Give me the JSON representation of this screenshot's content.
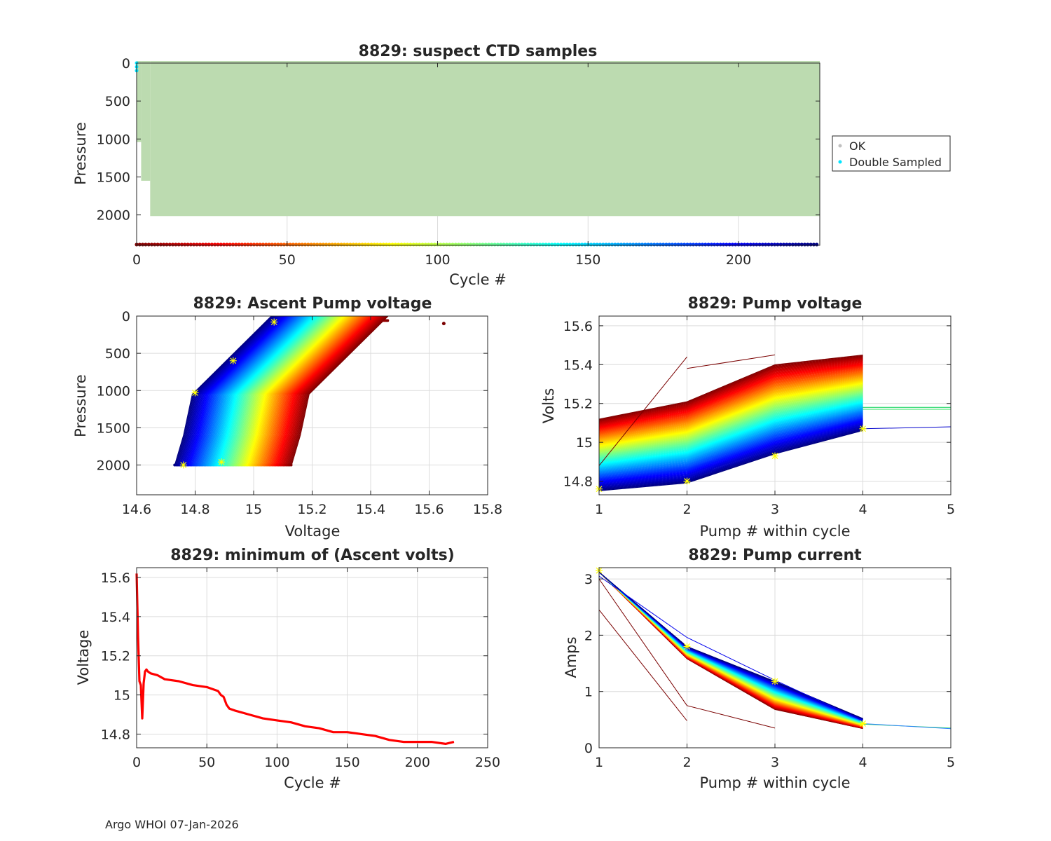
{
  "footer": "Argo WHOI 07-Jan-2026",
  "colors": {
    "ok": "#bcdbb0",
    "double": "#00e5ff",
    "grid": "#dcdcdc",
    "axis": "#262626",
    "min_line": "#ff0000",
    "marker": "#ffff00"
  },
  "chart_data": [
    {
      "id": "ctd",
      "type": "scatter",
      "title": "8829: suspect CTD samples",
      "xlabel": "Cycle #",
      "ylabel": "Pressure",
      "xlim": [
        0,
        227
      ],
      "ylim": [
        0,
        2400
      ],
      "y_reversed": true,
      "xticks": [
        0,
        50,
        100,
        150,
        200
      ],
      "yticks": [
        0,
        500,
        1000,
        1500,
        2000
      ],
      "grid": "x",
      "legend": {
        "placement": "outside-right",
        "entries": [
          {
            "label": "OK",
            "color": "#c0c0c0"
          },
          {
            "label": "Double Sampled",
            "color": "#00e5ff"
          }
        ]
      },
      "ok_profile_max_pressure": [
        {
          "cycle_from": 0,
          "cycle_to": 1.5,
          "pressure": 1040
        },
        {
          "cycle_from": 1.5,
          "cycle_to": 4.5,
          "pressure": 1550
        },
        {
          "cycle_from": 4.5,
          "cycle_to": 227,
          "pressure": 2015
        }
      ],
      "double_sampled": [
        {
          "cycle": 0,
          "pressure": 0
        },
        {
          "cycle": 0,
          "pressure": 50
        },
        {
          "cycle": 0,
          "pressure": 100
        }
      ],
      "cycle_strip_pressure": 2390,
      "cycles": 227
    },
    {
      "id": "ascent",
      "type": "line",
      "title": "8829: Ascent Pump voltage",
      "xlabel": "Voltage",
      "ylabel": "Pressure",
      "xlim": [
        14.6,
        15.8
      ],
      "ylim": [
        0,
        2400
      ],
      "y_reversed": true,
      "xticks": [
        14.6,
        14.8,
        15,
        15.2,
        15.4,
        15.6,
        15.8
      ],
      "yticks": [
        0,
        500,
        1000,
        1500,
        2000
      ],
      "grid": "both",
      "profile_template": {
        "pressure": [
          2000,
          1600,
          1050,
          0
        ],
        "voltage_offset": [
          0,
          0.03,
          0.06,
          0.33
        ]
      },
      "first_cycle_voltage_at_2000": 14.73,
      "last_cycle_voltage_at_2000": 15.13,
      "cycles": 227,
      "outlier": {
        "voltage": 15.65,
        "pressure": 100
      },
      "markers": [
        {
          "voltage": 15.07,
          "pressure": 80
        },
        {
          "voltage": 14.93,
          "pressure": 600
        },
        {
          "voltage": 14.8,
          "pressure": 1030
        },
        {
          "voltage": 14.76,
          "pressure": 2000
        },
        {
          "voltage": 14.89,
          "pressure": 1960
        }
      ]
    },
    {
      "id": "pumpv",
      "type": "line",
      "title": "8829: Pump voltage",
      "xlabel": "Pump # within cycle",
      "ylabel": "Volts",
      "xlim": [
        1,
        5
      ],
      "ylim": [
        14.73,
        15.65
      ],
      "xticks": [
        1,
        2,
        3,
        4,
        5
      ],
      "yticks": [
        14.8,
        15,
        15.2,
        15.4,
        15.6
      ],
      "grid": "both",
      "first_cycle_volts": [
        15.12,
        15.21,
        15.4,
        15.45
      ],
      "last_cycle_volts": [
        14.75,
        14.79,
        14.94,
        15.06
      ],
      "cycles": 227,
      "extra_lines": [
        {
          "color": "#00d050",
          "pumps": [
            4,
            5
          ],
          "volts": [
            15.18,
            15.18
          ]
        },
        {
          "color": "#30e060",
          "pumps": [
            4,
            5
          ],
          "volts": [
            15.17,
            15.17
          ]
        },
        {
          "color": "#0000cc",
          "pumps": [
            4,
            5
          ],
          "volts": [
            15.07,
            15.08
          ]
        },
        {
          "color": "#7a0000",
          "pumps": [
            1,
            2
          ],
          "volts": [
            14.88,
            15.44
          ]
        },
        {
          "color": "#7a0000",
          "pumps": [
            2,
            3
          ],
          "volts": [
            15.38,
            15.45
          ]
        }
      ],
      "markers": [
        {
          "pump": 1,
          "volts": 14.76
        },
        {
          "pump": 2,
          "volts": 14.8
        },
        {
          "pump": 3,
          "volts": 14.93
        },
        {
          "pump": 4,
          "volts": 15.07
        }
      ]
    },
    {
      "id": "minv",
      "type": "line",
      "title": "8829: minimum of (Ascent volts)",
      "xlabel": "Cycle #",
      "ylabel": "Voltage",
      "xlim": [
        0,
        250
      ],
      "ylim": [
        14.73,
        15.65
      ],
      "xticks": [
        0,
        50,
        100,
        150,
        200,
        250
      ],
      "yticks": [
        14.8,
        15,
        15.2,
        15.4,
        15.6
      ],
      "grid": "both",
      "series": [
        {
          "name": "minimum ascent volts",
          "x": [
            0,
            1,
            2,
            3,
            4,
            5,
            6,
            7,
            8,
            10,
            15,
            20,
            30,
            40,
            50,
            58,
            60,
            62,
            64,
            66,
            70,
            80,
            90,
            100,
            110,
            120,
            130,
            140,
            150,
            160,
            170,
            180,
            190,
            200,
            210,
            220,
            226
          ],
          "y": [
            15.62,
            15.3,
            15.07,
            15.05,
            14.88,
            15.06,
            15.12,
            15.13,
            15.12,
            15.11,
            15.1,
            15.08,
            15.07,
            15.05,
            15.04,
            15.02,
            15.0,
            14.99,
            14.95,
            14.93,
            14.92,
            14.9,
            14.88,
            14.87,
            14.86,
            14.84,
            14.83,
            14.81,
            14.81,
            14.8,
            14.79,
            14.77,
            14.76,
            14.76,
            14.76,
            14.75,
            14.76
          ]
        }
      ]
    },
    {
      "id": "pumpa",
      "type": "line",
      "title": "8829: Pump current",
      "xlabel": "Pump # within cycle",
      "ylabel": "Amps",
      "xlim": [
        1,
        5
      ],
      "ylim": [
        0,
        3.2
      ],
      "xticks": [
        1,
        2,
        3,
        4,
        5
      ],
      "yticks": [
        0,
        1,
        2,
        3
      ],
      "grid": "both",
      "first_cycle_amps": [
        3.12,
        1.58,
        0.68,
        0.34
      ],
      "last_cycle_amps": [
        3.12,
        1.8,
        1.18,
        0.52
      ],
      "cycles": 227,
      "extra_lines": [
        {
          "color": "#7a0000",
          "pumps": [
            1,
            2
          ],
          "amps": [
            2.45,
            0.48
          ]
        },
        {
          "color": "#7a0000",
          "pumps": [
            1,
            2,
            3
          ],
          "amps": [
            3.0,
            0.75,
            0.35
          ]
        },
        {
          "color": "#0000ee",
          "pumps": [
            1,
            2,
            3,
            4
          ],
          "amps": [
            3.05,
            1.96,
            1.2,
            0.48
          ]
        },
        {
          "color": "#30e060",
          "pumps": [
            4,
            5
          ],
          "amps": [
            0.42,
            0.35
          ]
        },
        {
          "color": "#3080ff",
          "pumps": [
            4,
            5
          ],
          "amps": [
            0.43,
            0.34
          ]
        }
      ],
      "markers": [
        {
          "pump": 1,
          "amps": 3.15
        },
        {
          "pump": 2,
          "amps": 1.8
        },
        {
          "pump": 3,
          "amps": 1.18
        },
        {
          "pump": 4,
          "amps": 0.43
        }
      ]
    }
  ]
}
